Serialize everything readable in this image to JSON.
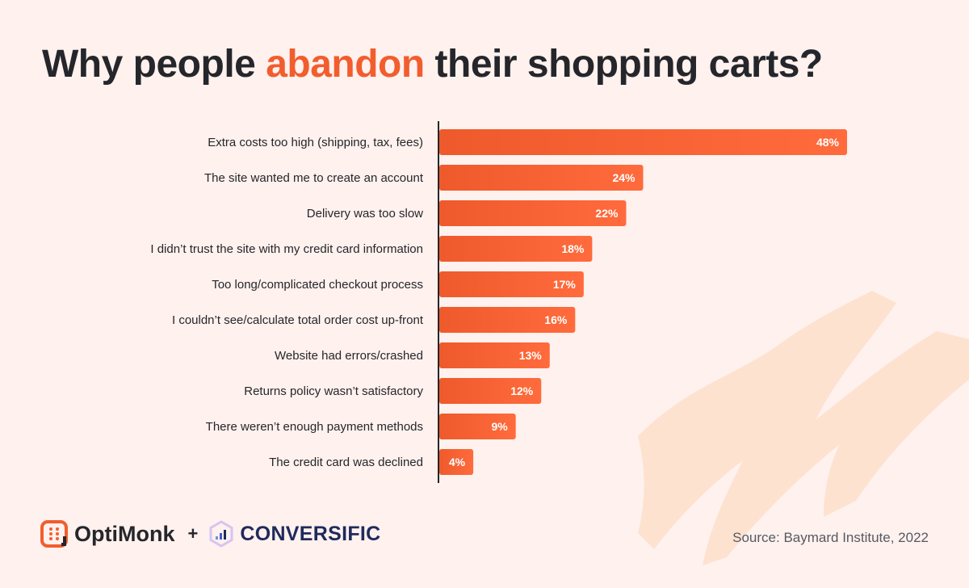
{
  "title": {
    "before": "Why people ",
    "highlight": "abandon",
    "after": " their shopping carts?"
  },
  "colors": {
    "accent": "#f25d2e",
    "bar_start": "#ee5a2b",
    "bar_end": "#ff6b3c",
    "background": "#fff1ee",
    "decoration": "#fde0cc"
  },
  "chart_data": {
    "type": "bar",
    "orientation": "horizontal",
    "title": "Why people abandon their shopping carts?",
    "categories": [
      "Extra costs too high (shipping, tax, fees)",
      "The site wanted me to create an account",
      "Delivery was too slow",
      "I didn’t trust the site with my credit card information",
      "Too long/complicated checkout process",
      "I couldn’t see/calculate total order cost up-front",
      "Website had errors/crashed",
      "Returns policy wasn’t satisfactory",
      "There weren’t enough payment methods",
      "The credit card was declined"
    ],
    "values": [
      48,
      24,
      22,
      18,
      17,
      16,
      13,
      12,
      9,
      4
    ],
    "value_labels": [
      "48%",
      "24%",
      "22%",
      "18%",
      "17%",
      "16%",
      "13%",
      "12%",
      "9%",
      "4%"
    ],
    "unit": "%",
    "xlim": [
      0,
      48
    ],
    "grid": false
  },
  "footer": {
    "source": "Source: Baymard Institute, 2022",
    "logo_optimonk": "OptiMonk",
    "plus": "+",
    "logo_conversific": "CONVERSIFIC"
  }
}
